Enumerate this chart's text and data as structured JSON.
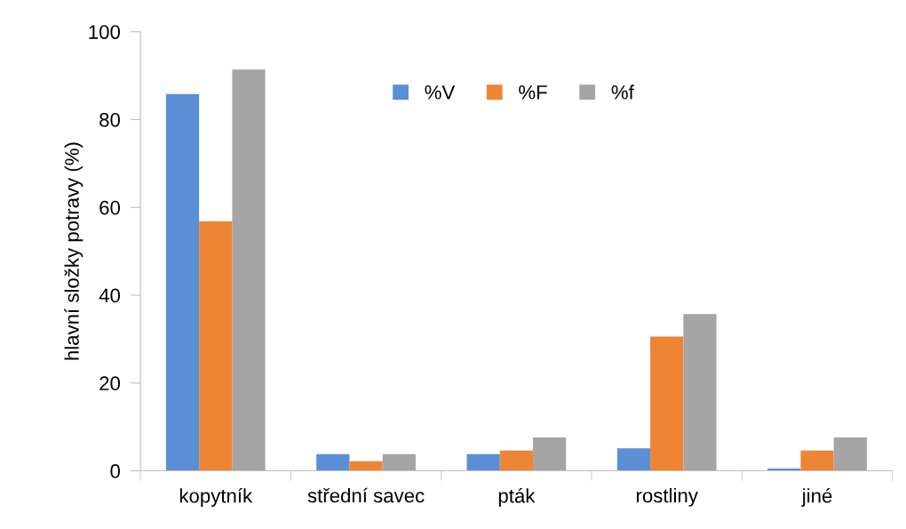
{
  "chart_data": {
    "type": "bar",
    "ylabel": "hlavní složky potravy (%)",
    "categories": [
      "kopytník",
      "střední savec",
      "pták",
      "rostliny",
      "jiné"
    ],
    "series": [
      {
        "name": "%V",
        "color": "#5b8fd5",
        "values": [
          85.8,
          3.8,
          3.8,
          5.1,
          0.5
        ]
      },
      {
        "name": "%F",
        "color": "#ed8535",
        "values": [
          56.8,
          2.2,
          4.6,
          30.6,
          4.6
        ]
      },
      {
        "name": "%f",
        "color": "#a5a5a5",
        "values": [
          91.4,
          3.8,
          7.6,
          35.7,
          7.6
        ]
      }
    ],
    "ylim": [
      0,
      100
    ],
    "yticks": [
      0,
      20,
      40,
      60,
      80,
      100
    ],
    "grid": false,
    "legend": "top right"
  }
}
